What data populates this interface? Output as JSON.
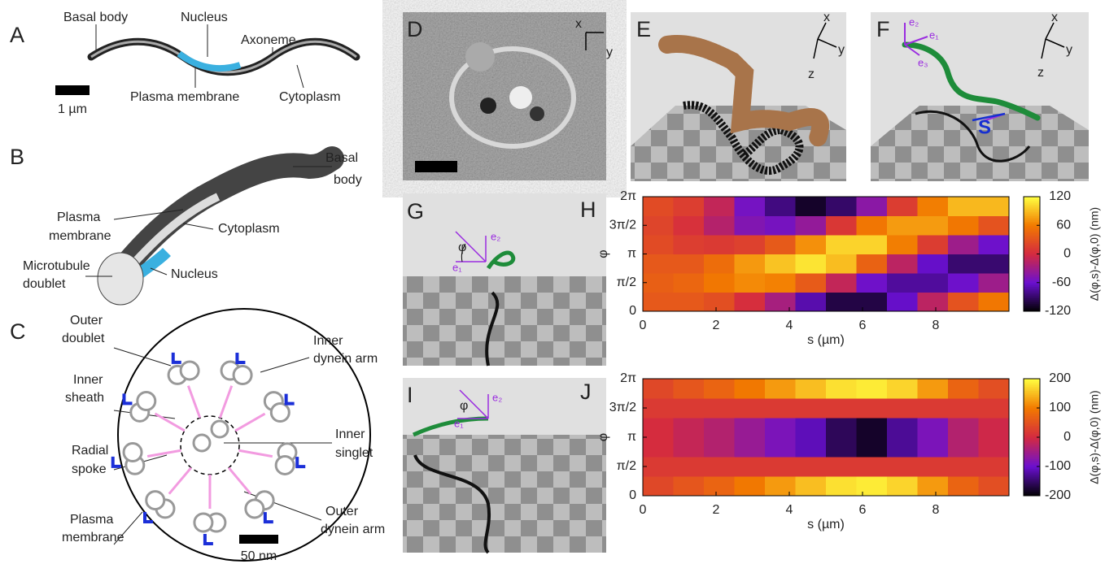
{
  "figure": {
    "A": {
      "letter": "A",
      "labels": [
        "Basal body",
        "Nucleus",
        "Axoneme",
        "Plasma membrane",
        "Cytoplasm"
      ],
      "scale": "1 µm"
    },
    "B": {
      "letter": "B",
      "labels": [
        [
          "Basal",
          "body"
        ],
        [
          "Plasma",
          "membrane"
        ],
        "Cytoplasm",
        [
          "Microtubule",
          "doublet"
        ],
        "Nucleus"
      ]
    },
    "C": {
      "letter": "C",
      "labels": [
        [
          "Outer",
          "doublet"
        ],
        [
          "Inner",
          "sheath"
        ],
        [
          "Radial",
          "spoke"
        ],
        [
          "Plasma",
          "membrane"
        ],
        [
          "Inner",
          "dynein arm"
        ],
        [
          "Inner",
          "singlet"
        ],
        [
          "Outer",
          "dynein arm"
        ]
      ],
      "scale": "50 nm"
    },
    "D": {
      "letter": "D",
      "axes": [
        "x",
        "y"
      ]
    },
    "E": {
      "letter": "E",
      "axes": [
        "x",
        "y",
        "z"
      ]
    },
    "F": {
      "letter": "F",
      "axes": [
        "x",
        "y",
        "z"
      ],
      "vectors": [
        "e₁",
        "e₂",
        "e₃"
      ],
      "arc": "S"
    },
    "G": {
      "letter": "G",
      "angle": "φ",
      "vectors": [
        "e₁",
        "e₂"
      ]
    },
    "I": {
      "letter": "I",
      "angle": "φ",
      "vectors": [
        "e₁",
        "e₂"
      ]
    }
  },
  "chart_data": [
    {
      "type": "heatmap",
      "panel": "H",
      "xlabel": "s (µm)",
      "ylabel": "φ",
      "colorbar_label": "Δ(φ,s)-Δ(φ,0)  (nm)",
      "xlim": [
        0,
        10
      ],
      "xticks": [
        0,
        2,
        4,
        6,
        8
      ],
      "ylim": [
        0,
        6.2832
      ],
      "yticks": [
        0,
        {
          "value": 1.5708,
          "label": "π/2"
        },
        {
          "value": 3.1416,
          "label": "π"
        },
        {
          "value": 4.7124,
          "label": "3π/2"
        },
        {
          "value": 6.2832,
          "label": "2π"
        }
      ],
      "zlim": [
        -120,
        120
      ],
      "zticks": [
        -120,
        -60,
        0,
        60,
        120
      ],
      "colormap": [
        "#000000",
        "#6a10d0",
        "#d42a40",
        "#f27a00",
        "#ffff40"
      ],
      "z": [
        [
          35,
          35,
          28,
          3,
          -26,
          -70,
          -100,
          -100,
          -62,
          -14,
          31,
          58
        ],
        [
          40,
          45,
          58,
          67,
          63,
          37,
          -10,
          -57,
          -75,
          -75,
          -58,
          -31
        ],
        [
          35,
          35,
          50,
          74,
          93,
          108,
          90,
          42,
          -14,
          -62,
          -88,
          -88
        ],
        [
          25,
          15,
          12,
          17,
          36,
          70,
          100,
          100,
          62,
          14,
          -31,
          -58
        ],
        [
          20,
          5,
          -18,
          -47,
          -53,
          -37,
          10,
          57,
          75,
          75,
          58,
          31
        ],
        [
          25,
          15,
          -10,
          -54,
          -83,
          -108,
          -90,
          -42,
          14,
          62,
          88,
          88
        ]
      ]
    },
    {
      "type": "heatmap",
      "panel": "J",
      "xlabel": "s (µm)",
      "ylabel": "φ",
      "colorbar_label": "Δ(φ,s)-Δ(φ,0)  (nm)",
      "xlim": [
        0,
        10
      ],
      "xticks": [
        0,
        2,
        4,
        6,
        8
      ],
      "ylim": [
        0,
        6.2832
      ],
      "yticks": [
        0,
        {
          "value": 1.5708,
          "label": "π/2"
        },
        {
          "value": 3.1416,
          "label": "π"
        },
        {
          "value": 4.7124,
          "label": "3π/2"
        },
        {
          "value": 6.2832,
          "label": "2π"
        }
      ],
      "zlim": [
        -200,
        200
      ],
      "zticks": [
        -200,
        -100,
        0,
        100,
        200
      ],
      "colormap": [
        "#000000",
        "#6a10d0",
        "#d42a40",
        "#f27a00",
        "#ffff40"
      ],
      "z": [
        [
          37,
          55,
          72,
          98,
          124,
          151,
          177,
          185,
          168,
          124,
          72,
          46
        ],
        [
          20,
          20,
          20,
          20,
          20,
          20,
          20,
          20,
          20,
          20,
          20,
          20
        ],
        [
          3,
          -15,
          -32,
          -58,
          -84,
          -111,
          -157,
          -180,
          -128,
          -84,
          -32,
          -6
        ],
        [
          3,
          -15,
          -32,
          -58,
          -84,
          -111,
          -157,
          -180,
          -128,
          -84,
          -32,
          -6
        ],
        [
          20,
          20,
          20,
          20,
          20,
          20,
          20,
          20,
          20,
          20,
          20,
          20
        ],
        [
          37,
          55,
          72,
          98,
          124,
          151,
          177,
          185,
          168,
          124,
          72,
          46
        ]
      ]
    }
  ]
}
